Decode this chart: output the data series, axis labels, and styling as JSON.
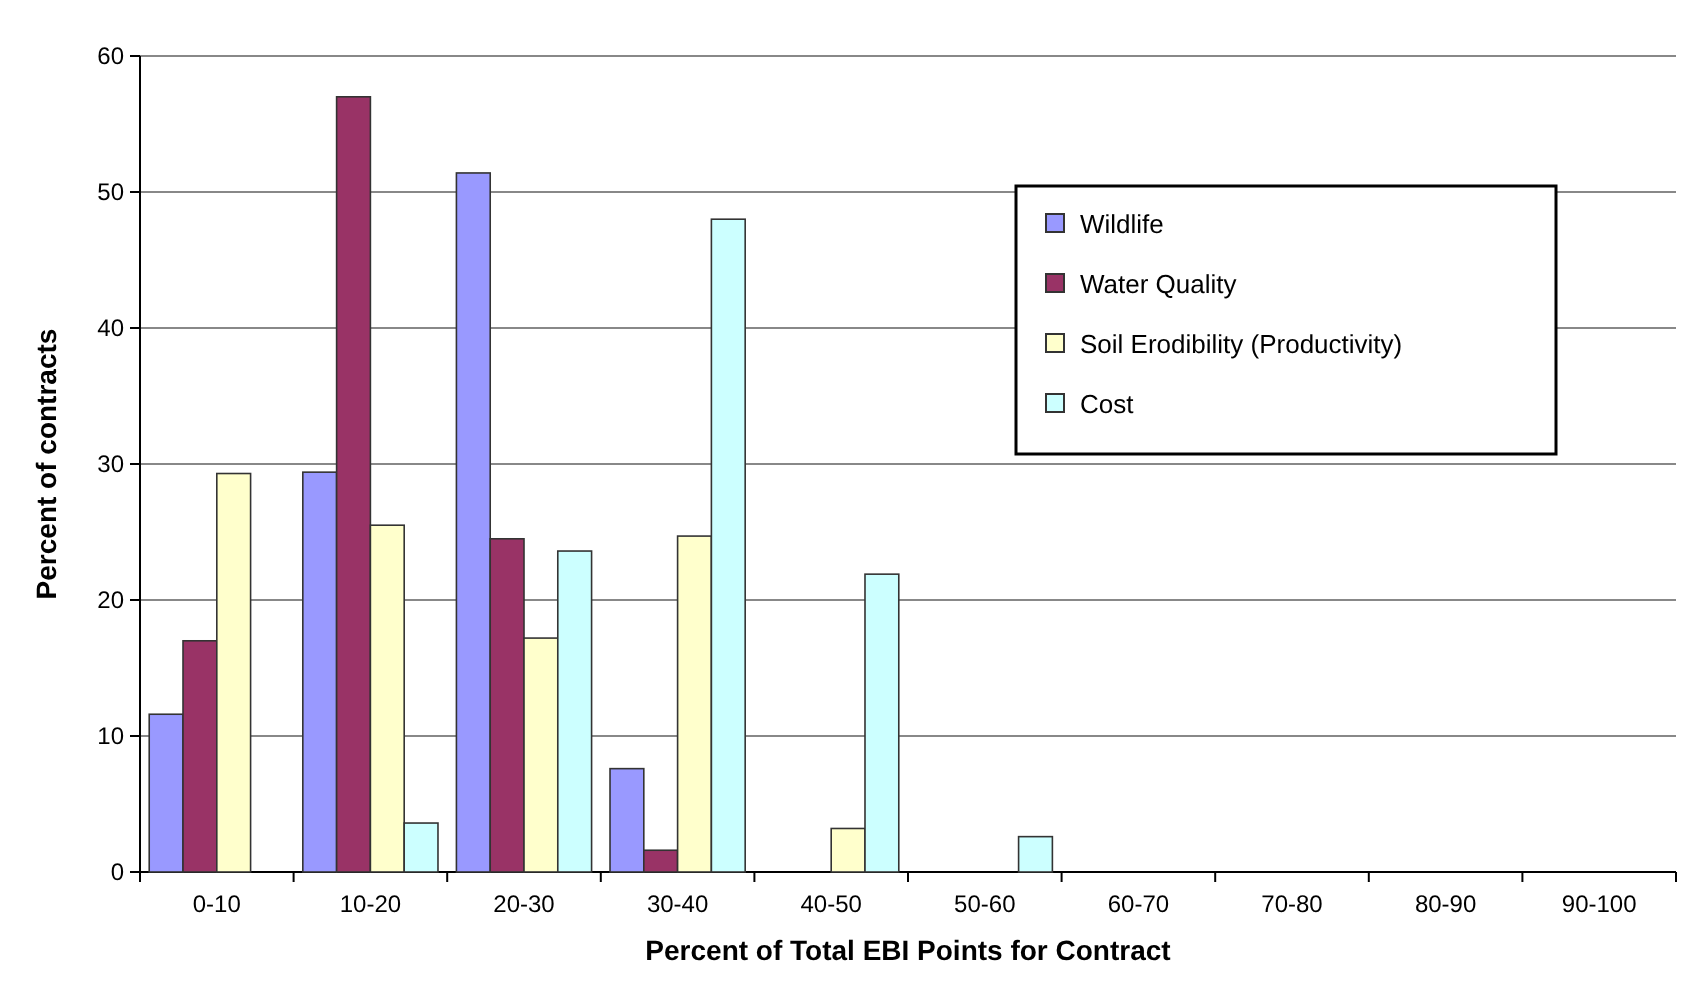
{
  "chart_data": {
    "type": "bar",
    "xlabel": "Percent of Total EBI Points for Contract",
    "ylabel": "Percent of contracts",
    "categories": [
      "0-10",
      "10-20",
      "20-30",
      "30-40",
      "40-50",
      "50-60",
      "60-70",
      "70-80",
      "80-90",
      "90-100"
    ],
    "series": [
      {
        "name": "Wildlife",
        "color": "#9999ff",
        "values": [
          11.6,
          29.4,
          51.4,
          7.6,
          0,
          0,
          0,
          0,
          0,
          0
        ]
      },
      {
        "name": "Water Quality",
        "color": "#993366",
        "values": [
          17,
          57,
          24.5,
          1.6,
          0,
          0,
          0,
          0,
          0,
          0
        ]
      },
      {
        "name": "Soil Erodibility (Productivity)",
        "color": "#ffffcc",
        "values": [
          29.3,
          25.5,
          17.2,
          24.7,
          3.2,
          0,
          0,
          0,
          0,
          0
        ]
      },
      {
        "name": "Cost",
        "color": "#ccffff",
        "values": [
          0,
          3.6,
          23.6,
          48,
          21.9,
          2.6,
          0,
          0,
          0,
          0
        ]
      }
    ],
    "ylim": [
      0,
      60
    ],
    "yticks": [
      0,
      10,
      20,
      30,
      40,
      50,
      60
    ],
    "grid": "y",
    "legend": "top right"
  }
}
